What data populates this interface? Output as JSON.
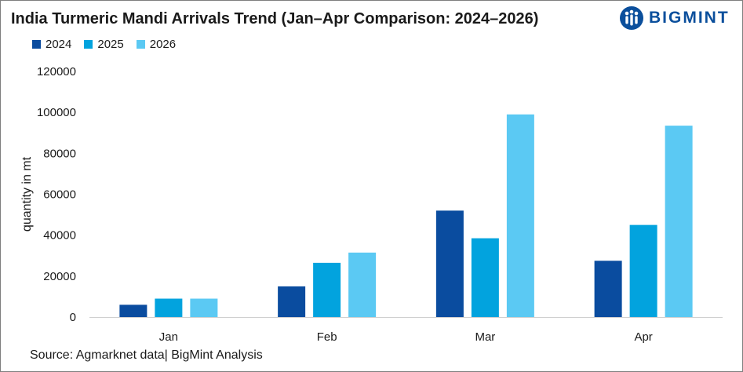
{
  "title": "India Turmeric Mandi Arrivals Trend (Jan–Apr Comparison: 2024–2026)",
  "brand": {
    "name": "BIGMINT",
    "logo_icon": "bigmint-logo-icon"
  },
  "source": "Source: Agmarknet data| BigMint Analysis",
  "chart_data": {
    "type": "bar",
    "title": "India Turmeric Mandi Arrivals Trend (Jan–Apr Comparison: 2024–2026)",
    "xlabel": "",
    "ylabel": "quantity in mt",
    "categories": [
      "Jan",
      "Feb",
      "Mar",
      "Apr"
    ],
    "series": [
      {
        "name": "2024",
        "color": "#0a4c9f",
        "values": [
          6000,
          15000,
          52000,
          27500
        ]
      },
      {
        "name": "2025",
        "color": "#02a3de",
        "values": [
          9000,
          26500,
          38500,
          45000
        ]
      },
      {
        "name": "2026",
        "color": "#5bc9f3",
        "values": [
          9000,
          31500,
          99000,
          93500
        ]
      }
    ],
    "ylim": [
      0,
      120000
    ],
    "yticks": [
      "0",
      "20000",
      "40000",
      "60000",
      "80000",
      "100000",
      "120000"
    ],
    "grid": false,
    "legend": "top-left"
  }
}
